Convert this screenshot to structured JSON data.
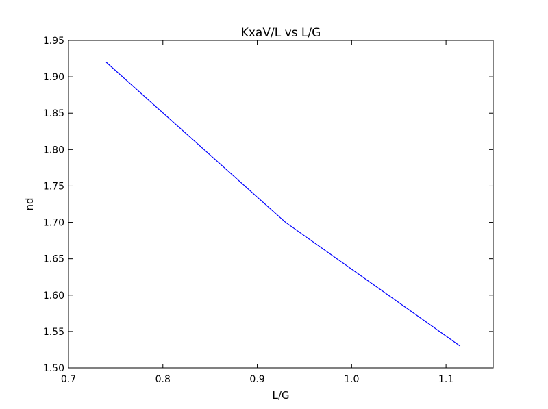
{
  "chart_data": {
    "type": "line",
    "title": "KxaV/L vs L/G",
    "xlabel": "L/G",
    "ylabel": "nd",
    "xlim": [
      0.7,
      1.15
    ],
    "ylim": [
      1.5,
      1.95
    ],
    "xticks": [
      "0.7",
      "0.8",
      "0.9",
      "1.0",
      "1.1"
    ],
    "yticks": [
      "1.50",
      "1.55",
      "1.60",
      "1.65",
      "1.70",
      "1.75",
      "1.80",
      "1.85",
      "1.90",
      "1.95"
    ],
    "grid": false,
    "series": [
      {
        "color": "#0000ff",
        "x": [
          0.74,
          0.93,
          1.115
        ],
        "y": [
          1.92,
          1.7,
          1.53
        ]
      }
    ]
  }
}
